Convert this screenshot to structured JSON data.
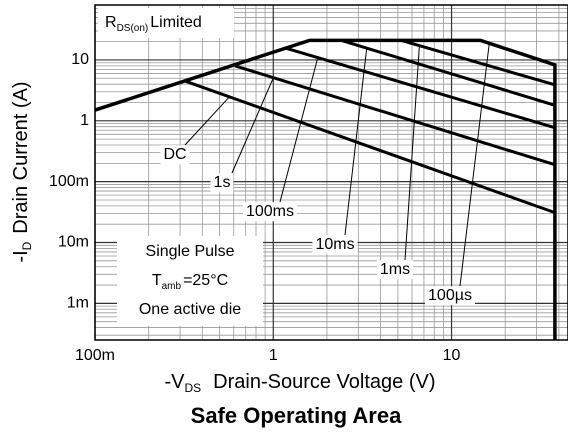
{
  "chart_data": {
    "type": "line",
    "title": "Safe Operating Area",
    "x_label": {
      "prefix": "-V",
      "sub": "DS",
      "text": "Drain-Source Voltage (V)"
    },
    "y_label": {
      "prefix": "-I",
      "sub": "D",
      "text": "Drain Current (A)"
    },
    "log_x": true,
    "log_y": true,
    "grid": true,
    "xlim": [
      0.1,
      45
    ],
    "ylim": [
      0.00025,
      80
    ],
    "xticks": [
      {
        "value": 0.1,
        "label": "100m"
      },
      1,
      10
    ],
    "yticks": [
      {
        "value": 0.001,
        "label": "1m"
      },
      {
        "value": 0.01,
        "label": "10m"
      },
      {
        "value": 0.1,
        "label": "100m"
      },
      1,
      10
    ],
    "color": "#000000",
    "envelope": {
      "x": [
        0.1,
        1.6,
        14.5,
        38,
        38
      ],
      "y": [
        1.5,
        21,
        21,
        8.3,
        0.00025
      ]
    },
    "series": [
      {
        "name": "DC",
        "x": [
          0.32,
          38
        ],
        "values": [
          4.5,
          0.031
        ]
      },
      {
        "name": "1s",
        "x": [
          0.61,
          38
        ],
        "values": [
          8,
          0.19
        ]
      },
      {
        "name": "100ms",
        "x": [
          1.17,
          38
        ],
        "values": [
          15.7,
          0.77
        ]
      },
      {
        "name": "10ms",
        "x": [
          2.4,
          38
        ],
        "values": [
          21,
          1.8
        ]
      },
      {
        "name": "1ms",
        "x": [
          5.2,
          38
        ],
        "values": [
          21,
          3.9
        ]
      },
      {
        "name": "100µs",
        "x": [
          14.5,
          38
        ],
        "values": [
          21,
          8.3
        ]
      }
    ],
    "rds_label": {
      "prefix": "R",
      "sub": "DS(on)",
      "text": "Limited"
    },
    "conditions": [
      "Single Pulse",
      {
        "prefix": "T",
        "sub": "amb",
        "text": "=25°C"
      },
      "One active die"
    ]
  }
}
